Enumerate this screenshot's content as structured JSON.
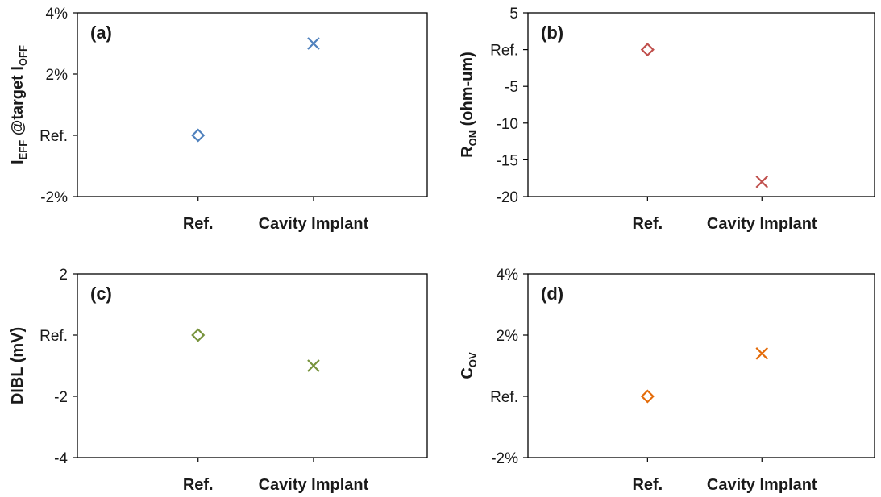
{
  "chart_data": [
    {
      "id": "a",
      "type": "scatter",
      "panel_label": "(a)",
      "ylabel": "I_EFF @target I_OFF",
      "ylabel_parts": [
        {
          "t": "I",
          "sub": false
        },
        {
          "t": "EFF",
          "sub": true
        },
        {
          "t": " @target I",
          "sub": false
        },
        {
          "t": "OFF",
          "sub": true
        }
      ],
      "categories": [
        "Ref.",
        "Cavity Implant"
      ],
      "values": [
        0,
        3
      ],
      "markers": [
        "diamond",
        "x"
      ],
      "color": "#4f81bd",
      "ylim": [
        -2,
        4
      ],
      "yticks": [
        -2,
        0,
        2,
        4
      ],
      "yticklabels": [
        "-2%",
        "Ref.",
        "2%",
        "4%"
      ]
    },
    {
      "id": "b",
      "type": "scatter",
      "panel_label": "(b)",
      "ylabel": "R_ON (ohm-um)",
      "ylabel_parts": [
        {
          "t": "R",
          "sub": false
        },
        {
          "t": "ON",
          "sub": true
        },
        {
          "t": " (ohm-um)",
          "sub": false
        }
      ],
      "categories": [
        "Ref.",
        "Cavity Implant"
      ],
      "values": [
        0,
        -18
      ],
      "markers": [
        "diamond",
        "x"
      ],
      "color": "#c0504d",
      "ylim": [
        -20,
        5
      ],
      "yticks": [
        -20,
        -15,
        -10,
        -5,
        0,
        5
      ],
      "yticklabels": [
        "-20",
        "-15",
        "-10",
        "-5",
        "Ref.",
        "5"
      ]
    },
    {
      "id": "c",
      "type": "scatter",
      "panel_label": "(c)",
      "ylabel": "DIBL (mV)",
      "ylabel_parts": [
        {
          "t": "DIBL (mV)",
          "sub": false
        }
      ],
      "categories": [
        "Ref.",
        "Cavity Implant"
      ],
      "values": [
        0,
        -1
      ],
      "markers": [
        "diamond",
        "x"
      ],
      "color": "#77933c",
      "ylim": [
        -4,
        2
      ],
      "yticks": [
        -4,
        -2,
        0,
        2
      ],
      "yticklabels": [
        "-4",
        "-2",
        "Ref.",
        "2"
      ]
    },
    {
      "id": "d",
      "type": "scatter",
      "panel_label": "(d)",
      "ylabel": "C_OV",
      "ylabel_parts": [
        {
          "t": "C",
          "sub": false
        },
        {
          "t": "OV",
          "sub": true
        }
      ],
      "categories": [
        "Ref.",
        "Cavity Implant"
      ],
      "values": [
        0,
        1.4
      ],
      "markers": [
        "diamond",
        "x"
      ],
      "color": "#e46c0a",
      "ylim": [
        -2,
        4
      ],
      "yticks": [
        -2,
        0,
        2,
        4
      ],
      "yticklabels": [
        "-2%",
        "Ref.",
        "2%",
        "4%"
      ]
    }
  ]
}
